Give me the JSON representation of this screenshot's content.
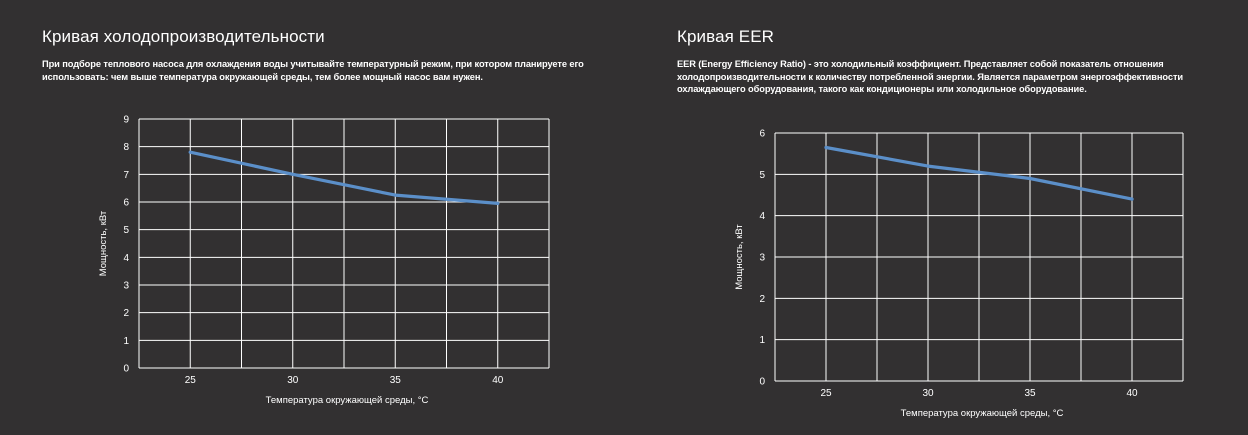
{
  "panels": [
    {
      "title": "Кривая холодопроизводительности",
      "description": "При подборе теплового насоса для охлаждения воды учитывайте температурный режим, при котором планируете его использовать: чем выше температура окружающей среды, тем более мощный насос вам нужен."
    },
    {
      "title": "Кривая EER",
      "description": "EER (Energy Efficiency Ratio) - это холодильный коэффициент. Представляет собой показатель отношения холодопроизводительности к количеству потребленной энергии. Является параметром энергоэффективности охлаждающего оборудования, такого как кондиционеры или холодильное оборудование."
    }
  ],
  "colors": {
    "background": "#323031",
    "grid": "#ffffff",
    "line": "#5b8fc9",
    "text": "#ffffff"
  },
  "chart_data": [
    {
      "type": "line",
      "title": "Кривая холодопроизводительности",
      "xlabel": "Температура окружающей среды, °C",
      "ylabel": "Мощность, кВт",
      "xlim": [
        22.5,
        42.5
      ],
      "ylim": [
        0,
        9
      ],
      "xticks": [
        25,
        30,
        35,
        40
      ],
      "yticks": [
        0,
        1,
        2,
        3,
        4,
        5,
        6,
        7,
        8,
        9
      ],
      "grid": true,
      "series": [
        {
          "x": [
            25,
            30,
            35,
            40
          ],
          "values": [
            7.8,
            7.0,
            6.25,
            5.95
          ]
        }
      ]
    },
    {
      "type": "line",
      "title": "Кривая EER",
      "xlabel": "Температура окружающей среды, °C",
      "ylabel": "Мощность, кВт",
      "xlim": [
        22.5,
        42.5
      ],
      "ylim": [
        0,
        6
      ],
      "xticks": [
        25,
        30,
        35,
        40
      ],
      "yticks": [
        0,
        1,
        2,
        3,
        4,
        5,
        6
      ],
      "grid": true,
      "series": [
        {
          "x": [
            25,
            30,
            35,
            40
          ],
          "values": [
            5.65,
            5.2,
            4.9,
            4.4
          ]
        }
      ]
    }
  ]
}
